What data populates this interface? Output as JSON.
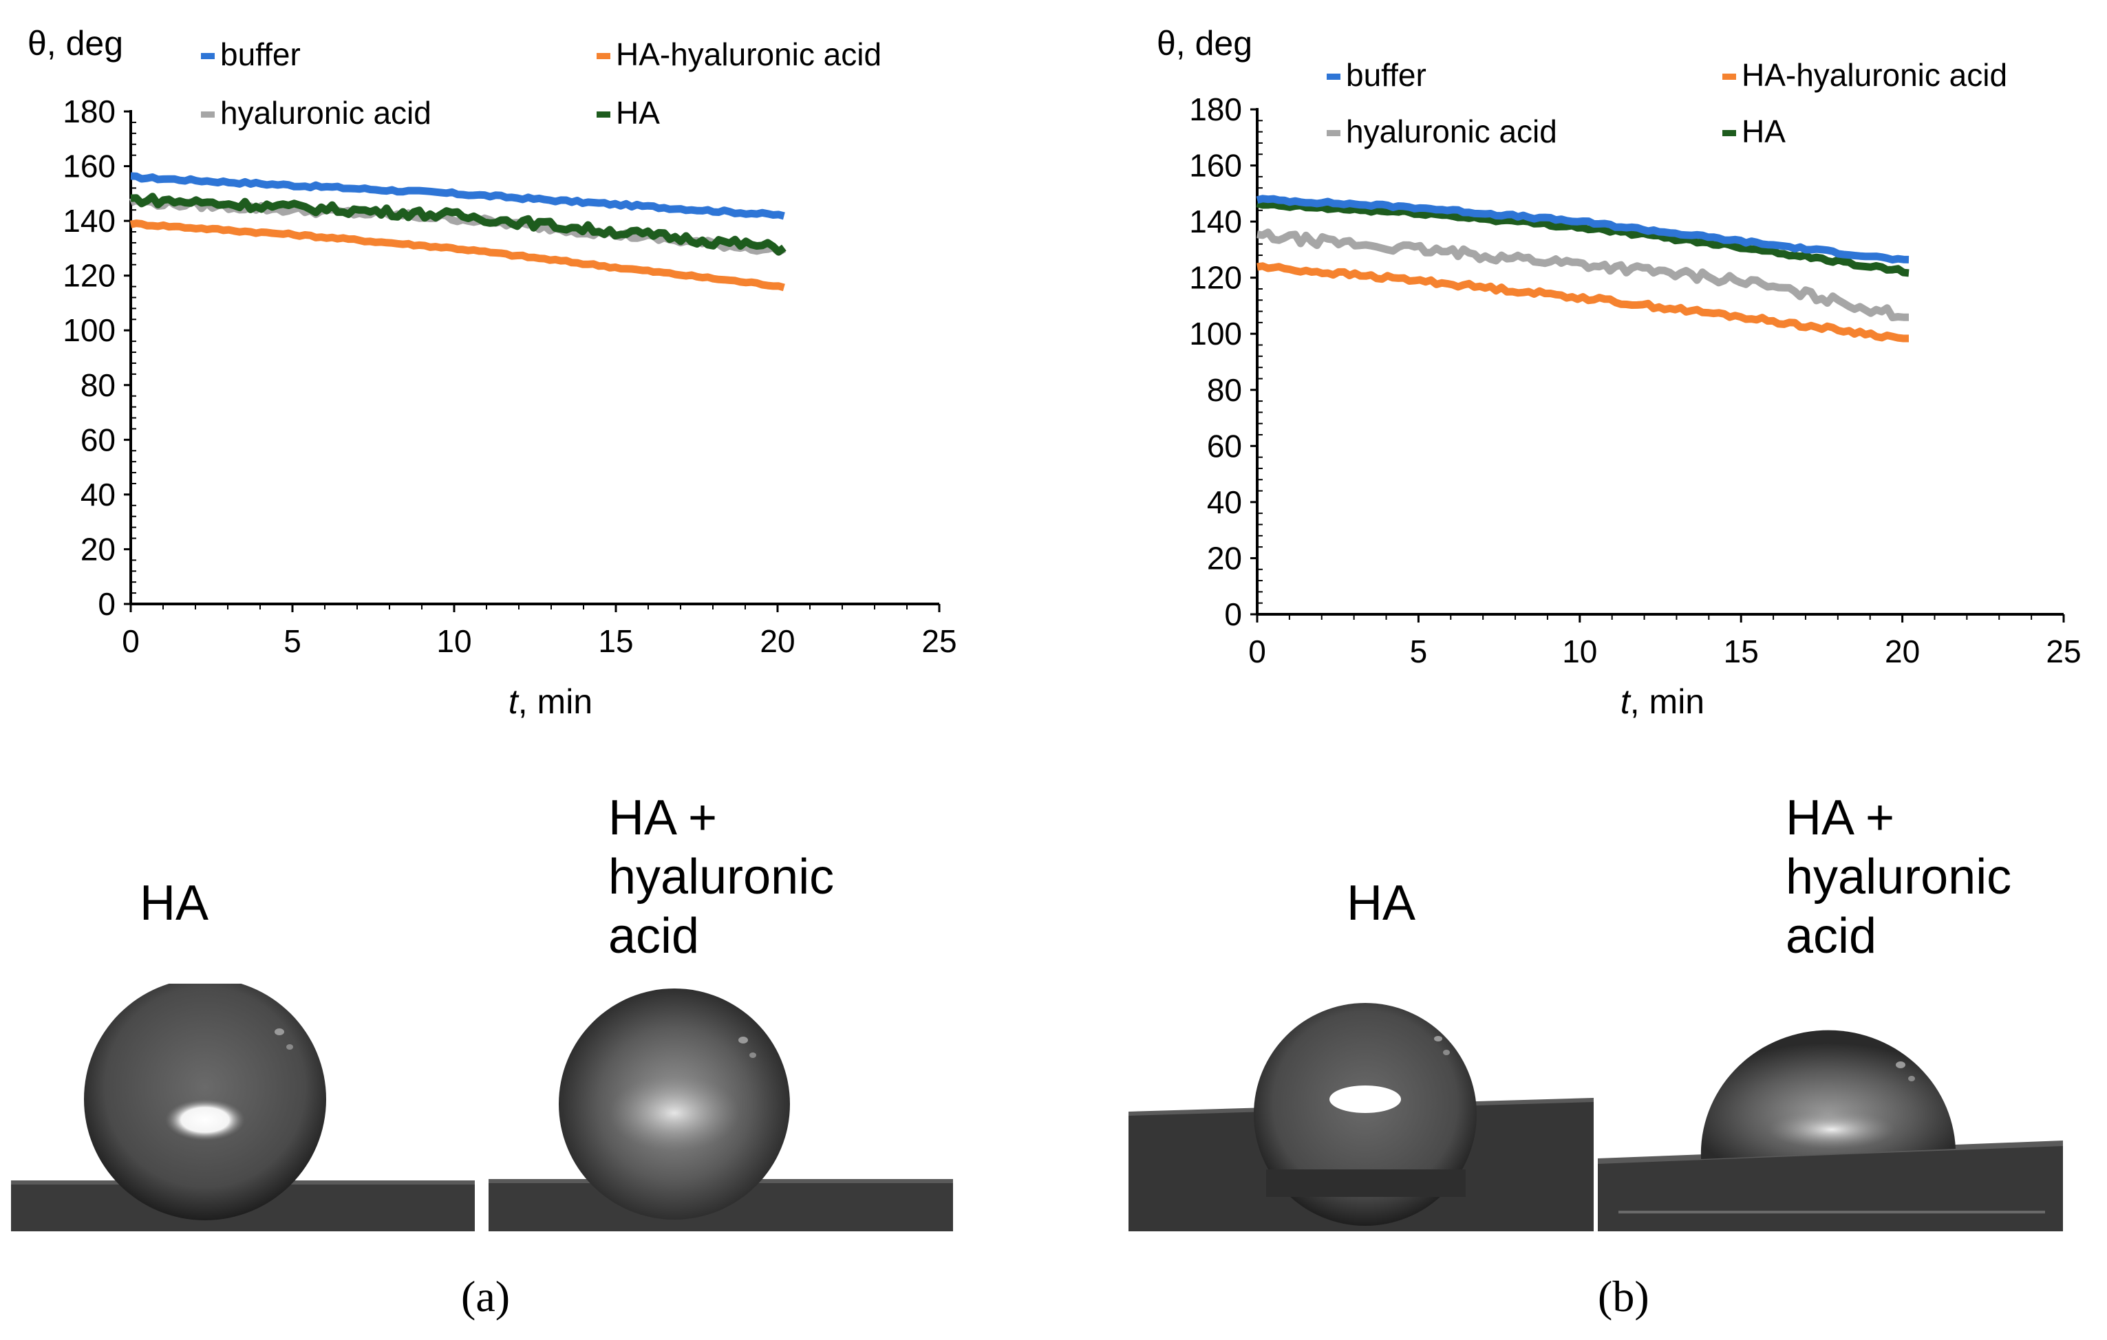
{
  "charts": [
    {
      "panel": "a",
      "ylabel": "θ, deg",
      "xlabel_var": "t",
      "xlabel_unit": ", min",
      "x_ticks": [
        "0",
        "5",
        "10",
        "15",
        "20",
        "25"
      ],
      "y_ticks": [
        "0",
        "20",
        "40",
        "60",
        "80",
        "100",
        "120",
        "140",
        "160",
        "180"
      ]
    },
    {
      "panel": "b",
      "ylabel": "θ, deg",
      "xlabel_var": "t",
      "xlabel_unit": ", min",
      "x_ticks": [
        "0",
        "5",
        "10",
        "15",
        "20",
        "25"
      ],
      "y_ticks": [
        "0",
        "20",
        "40",
        "60",
        "80",
        "100",
        "120",
        "140",
        "160",
        "180"
      ]
    }
  ],
  "chart_data": [
    {
      "type": "line",
      "xlim": [
        0,
        25
      ],
      "ylim": [
        0,
        180
      ],
      "legend_position": "top",
      "series": [
        {
          "name": "buffer",
          "color": "#2e75d6",
          "x": [
            0,
            5,
            10,
            15,
            20.2
          ],
          "y": [
            156,
            153,
            150,
            146,
            142
          ],
          "noise": 0.5
        },
        {
          "name": "HA-hyaluronic acid",
          "color": "#f5822f",
          "x": [
            0,
            5,
            10,
            15,
            20.2
          ],
          "y": [
            139,
            135,
            130,
            123,
            116
          ],
          "noise": 0.4
        },
        {
          "name": "hyaluronic acid",
          "color": "#a6a6a6",
          "x": [
            0,
            5,
            10,
            15,
            20.2
          ],
          "y": [
            147,
            144,
            141,
            135,
            129
          ],
          "noise": 1.2
        },
        {
          "name": "HA",
          "color": "#1e5c1e",
          "x": [
            0,
            5,
            10,
            15,
            20.2
          ],
          "y": [
            148,
            145,
            142,
            136,
            130
          ],
          "noise": 1.6
        }
      ]
    },
    {
      "type": "line",
      "xlim": [
        0,
        25
      ],
      "ylim": [
        0,
        180
      ],
      "legend_position": "top",
      "series": [
        {
          "name": "buffer",
          "color": "#2e75d6",
          "x": [
            0,
            5,
            10,
            15,
            20.2
          ],
          "y": [
            148,
            145,
            140,
            133,
            126
          ],
          "noise": 0.5
        },
        {
          "name": "HA-hyaluronic acid",
          "color": "#f5822f",
          "x": [
            0,
            5,
            10,
            15,
            20.2
          ],
          "y": [
            124,
            119,
            113,
            106,
            98
          ],
          "noise": 0.8
        },
        {
          "name": "hyaluronic acid",
          "color": "#a6a6a6",
          "x": [
            0,
            5,
            10,
            15,
            20.2
          ],
          "y": [
            135,
            130,
            125,
            119,
            106
          ],
          "noise": 1.6
        },
        {
          "name": "HA",
          "color": "#1e5c1e",
          "x": [
            0,
            5,
            10,
            15,
            20.2
          ],
          "y": [
            146,
            143,
            138,
            131,
            122
          ],
          "noise": 0.6
        }
      ]
    }
  ],
  "photos": [
    {
      "label": "HA"
    },
    {
      "label": "HA +\nhyaluronic\nacid"
    },
    {
      "label": "HA"
    },
    {
      "label": "HA +\nhyaluronic\nacid"
    }
  ],
  "panel_labels": [
    "(a)",
    "(b)"
  ]
}
